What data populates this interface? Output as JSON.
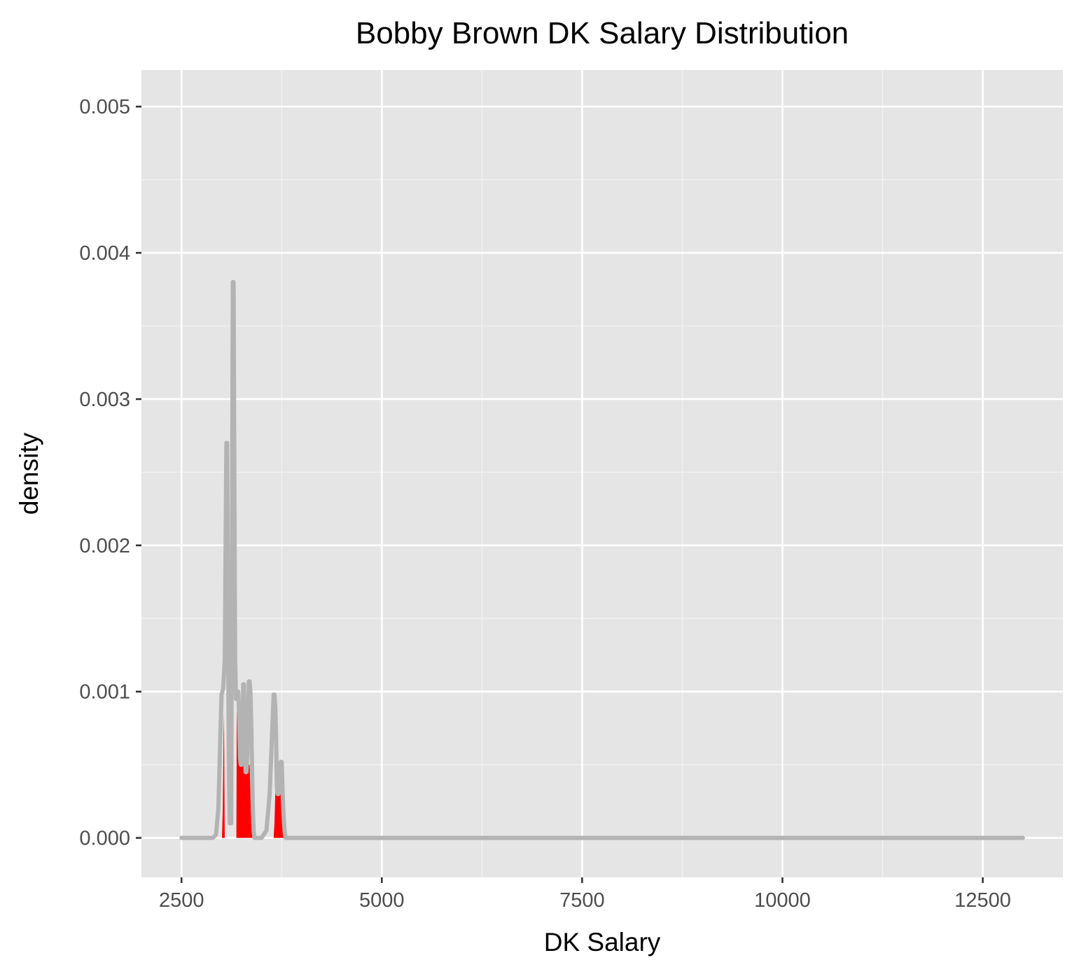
{
  "chart_data": {
    "type": "area",
    "title": "Bobby Brown DK Salary Distribution",
    "xlabel": "DK Salary",
    "ylabel": "density",
    "xlim": [
      2000,
      13500
    ],
    "ylim": [
      -0.00027,
      0.00525
    ],
    "x_ticks": [
      2500,
      5000,
      7500,
      10000,
      12500
    ],
    "x_tick_labels": [
      "2500",
      "5000",
      "7500",
      "10000",
      "12500"
    ],
    "y_ticks": [
      0,
      0.001,
      0.002,
      0.003,
      0.004,
      0.005
    ],
    "y_tick_labels": [
      "0.000",
      "0.001",
      "0.002",
      "0.003",
      "0.004",
      "0.005"
    ],
    "grid": true,
    "background_color": "#e5e5e5",
    "series": [
      {
        "style": "density line",
        "color": "#b3b3b3",
        "x": [
          2500,
          2890,
          2930,
          2960,
          2985,
          3000,
          3020,
          3040,
          3060,
          3070,
          3080,
          3090,
          3100,
          3110,
          3120,
          3140,
          3150,
          3160,
          3170,
          3180,
          3190,
          3200,
          3210,
          3220,
          3230,
          3240,
          3250,
          3260,
          3270,
          3280,
          3290,
          3300,
          3310,
          3320,
          3330,
          3340,
          3350,
          3360,
          3370,
          3380,
          3390,
          3400,
          3410,
          3420,
          3430,
          3440,
          3460,
          3480,
          3500,
          3560,
          3600,
          3630,
          3650,
          3660,
          3670,
          3680,
          3690,
          3700,
          3710,
          3720,
          3730,
          3740,
          3750,
          3760,
          3770,
          3780,
          3790,
          3800,
          3810,
          3820,
          3830,
          3840,
          3850,
          3860,
          3870,
          3880,
          3900,
          3950,
          4000,
          13000
        ],
        "y": [
          0,
          0,
          2e-05,
          0.0002,
          0.0007,
          0.00098,
          0.00102,
          0.00122,
          0.0027,
          0.0027,
          0.0015,
          0.0006,
          0.0001,
          0.0001,
          0.0001,
          0.0038,
          0.0038,
          0.0024,
          0.0012,
          0.00095,
          0.00095,
          0.001,
          0.001,
          0.0008,
          0.00055,
          0.0005,
          0.0005,
          0.0006,
          0.00105,
          0.00105,
          0.0007,
          0.00045,
          0.00045,
          0.00055,
          0.0008,
          0.00107,
          0.00107,
          0.001,
          0.0008,
          0.0005,
          0.0002,
          5e-05,
          0,
          0,
          0,
          0,
          0,
          0,
          0,
          5e-05,
          0.0003,
          0.0007,
          0.00098,
          0.00098,
          0.0009,
          0.0007,
          0.00035,
          0.0003,
          0.0003,
          0.00035,
          0.0005,
          0.00052,
          0.00052,
          0.00035,
          0.0002,
          0.0001,
          3e-05,
          0,
          0,
          0,
          0,
          0,
          0,
          0,
          0,
          0,
          0,
          0,
          0,
          0
        ]
      },
      {
        "style": "filled region",
        "color": "#ff0000",
        "regions": [
          {
            "x": [
              3005,
              3015,
              3025,
              3030,
              3035,
              3040
            ],
            "y": [
              0,
              0.0002,
              0.0007,
              0.00085,
              0.0004,
              0
            ]
          },
          {
            "x": [
              3185,
              3190,
              3200,
              3210,
              3220,
              3230,
              3240,
              3250,
              3260,
              3270,
              3280,
              3290,
              3300,
              3310,
              3320,
              3330,
              3340,
              3350,
              3360,
              3370,
              3385
            ],
            "y": [
              0,
              0.00085,
              0.0009,
              0.0008,
              0.0006,
              0.0005,
              0.0005,
              0.0005,
              0.0005,
              0.0006,
              0.0006,
              0.0005,
              0.00045,
              0.00045,
              0.0005,
              0.0005,
              0.0005,
              0.0005,
              0.0003,
              0.0001,
              0
            ]
          },
          {
            "x": [
              3650,
              3660,
              3670,
              3680,
              3690,
              3700,
              3710,
              3720,
              3730,
              3740,
              3750,
              3760,
              3770,
              3780
            ],
            "y": [
              0,
              0.0001,
              0.0003,
              0.00045,
              0.0004,
              0.0003,
              0.0003,
              0.0003,
              0.00035,
              0.0004,
              0.00035,
              0.0002,
              0.0001,
              0
            ]
          }
        ]
      }
    ]
  }
}
